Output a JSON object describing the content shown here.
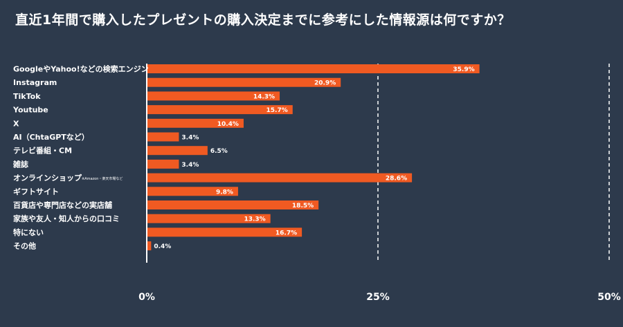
{
  "title": "直近1年間で購入したプレゼントの購入決定までに参考にした情報源は何ですか？",
  "colors": {
    "background": "#2d3a4c",
    "bar": "#f05a22",
    "text": "#ffffff",
    "gridline": "#ffffff"
  },
  "chart_data": {
    "type": "bar",
    "orientation": "horizontal",
    "title": "直近1年間で購入したプレゼントの購入決定までに参考にした情報源は何ですか？",
    "categories": [
      {
        "label": "GoogleやYahoo!などの検索エンジン",
        "note": ""
      },
      {
        "label": "Instagram",
        "note": ""
      },
      {
        "label": "TikTok",
        "note": ""
      },
      {
        "label": "Youtube",
        "note": ""
      },
      {
        "label": "X",
        "note": ""
      },
      {
        "label": "AI（ChtaGPTなど）",
        "note": ""
      },
      {
        "label": "テレビ番組・CM",
        "note": ""
      },
      {
        "label": "雑誌",
        "note": ""
      },
      {
        "label": "オンラインショップ",
        "note": "※Amazon・楽天市場など"
      },
      {
        "label": "ギフトサイト",
        "note": ""
      },
      {
        "label": "百貨店や専門店などの実店舗",
        "note": ""
      },
      {
        "label": "家族や友人・知人からの口コミ",
        "note": ""
      },
      {
        "label": "特にない",
        "note": ""
      },
      {
        "label": "その他",
        "note": ""
      }
    ],
    "values": [
      35.9,
      20.9,
      14.3,
      15.7,
      10.4,
      3.4,
      6.5,
      3.4,
      28.6,
      9.8,
      18.5,
      13.3,
      16.7,
      0.4
    ],
    "value_labels": [
      "35.9%",
      "20.9%",
      "14.3%",
      "15.7%",
      "10.4%",
      "3.4%",
      "6.5%",
      "3.4%",
      "28.6%",
      "9.8%",
      "18.5%",
      "13.3%",
      "16.7%",
      "0.4%"
    ],
    "xlim": [
      0,
      50
    ],
    "xticks": [
      {
        "value": 0,
        "label": "0%"
      },
      {
        "value": 25,
        "label": "25%"
      },
      {
        "value": 50,
        "label": "50%"
      }
    ],
    "grid": "dashed vertical lines at 25% and 50%",
    "legend": "none"
  }
}
